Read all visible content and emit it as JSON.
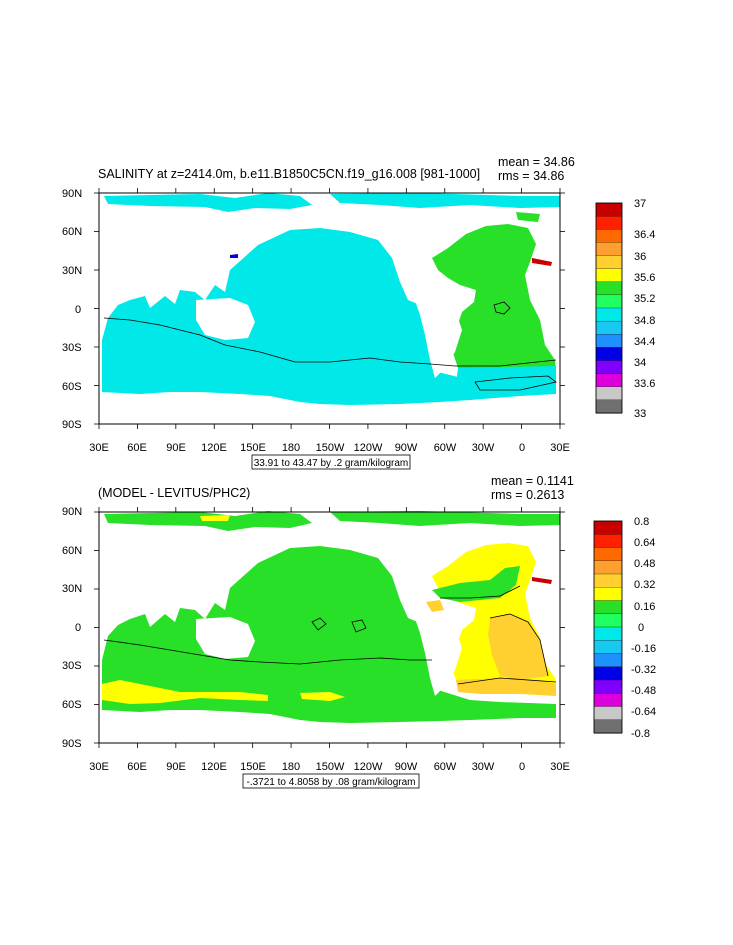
{
  "panel_top": {
    "title": "SALINITY at z=2414.0m, b.e11.B1850C5CN.f19_g16.008 [981-1000]",
    "mean": "mean = 34.86",
    "rms": "rms = 34.86",
    "contour_info": "33.91 to 43.47 by .2 gram/kilogram",
    "colorbar_labels": [
      "37",
      "36.4",
      "36",
      "35.6",
      "35.2",
      "34.8",
      "34.4",
      "34",
      "33.6",
      "33"
    ],
    "colorbar_colors": [
      "#c80000",
      "#ff2000",
      "#ff6a00",
      "#ff9f30",
      "#ffd030",
      "#ffff00",
      "#28e028",
      "#20ff60",
      "#00e8e8",
      "#18c8f0",
      "#1e90ff",
      "#0000e6",
      "#8000ff",
      "#dd00dd",
      "#c8c8c8",
      "#707070"
    ]
  },
  "panel_bottom": {
    "title": "(MODEL - LEVITUS/PHC2)",
    "mean": "mean = 0.1141",
    "rms": "rms = 0.2613",
    "contour_info": "-.3721 to 4.8058 by .08 gram/kilogram",
    "colorbar_labels": [
      "0.8",
      "0.64",
      "0.48",
      "0.32",
      "0.16",
      "0",
      "-0.16",
      "-0.32",
      "-0.48",
      "-0.64",
      "-0.8"
    ],
    "colorbar_colors": [
      "#c80000",
      "#ff2000",
      "#ff6a00",
      "#ff9f30",
      "#ffd030",
      "#ffff00",
      "#28e028",
      "#20ff60",
      "#00e8e8",
      "#18c8f0",
      "#1e90ff",
      "#0000e6",
      "#8000ff",
      "#dd00dd",
      "#c8c8c8",
      "#707070"
    ]
  },
  "axes": {
    "lat_labels": [
      "90N",
      "60N",
      "30N",
      "0",
      "30S",
      "60S",
      "90S"
    ],
    "lon_labels": [
      "30E",
      "60E",
      "90E",
      "120E",
      "150E",
      "180",
      "150W",
      "120W",
      "90W",
      "60W",
      "30W",
      "0",
      "30E"
    ]
  }
}
